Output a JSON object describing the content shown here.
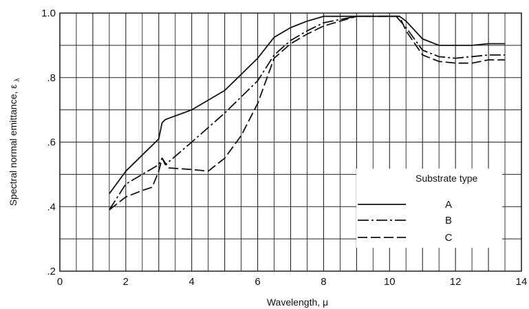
{
  "chart_data": {
    "type": "line",
    "title": "",
    "xlabel": "Wavelength, μ",
    "ylabel": "Spectral normal emittance, ε",
    "ylabel_subscript": "λ",
    "xlim": [
      0,
      14
    ],
    "ylim": [
      0.2,
      1.0
    ],
    "x_ticks": [
      0,
      2,
      4,
      6,
      8,
      10,
      12,
      14
    ],
    "x_tick_labels": [
      "0",
      "2",
      "4",
      "6",
      "8",
      "10",
      "12",
      "14"
    ],
    "y_ticks": [
      0.2,
      0.4,
      0.6,
      0.8,
      1.0
    ],
    "y_tick_labels": [
      ".2",
      ".4",
      ".6",
      ".8",
      "1.0"
    ],
    "grid": true,
    "legend": {
      "title": "Substrate type",
      "placement": "lower-right",
      "entries": [
        "A",
        "B",
        "C"
      ]
    },
    "series": [
      {
        "name": "A",
        "style": "solid",
        "x": [
          1.5,
          2.0,
          2.5,
          3.0,
          3.1,
          3.2,
          4.0,
          5.0,
          6.0,
          6.5,
          7.0,
          7.5,
          8.0,
          9.0,
          10.0,
          10.3,
          10.5,
          11.0,
          11.5,
          12.0,
          12.5,
          13.0,
          13.5
        ],
        "y": [
          0.44,
          0.51,
          0.56,
          0.61,
          0.66,
          0.67,
          0.7,
          0.76,
          0.86,
          0.925,
          0.955,
          0.975,
          0.99,
          0.99,
          0.99,
          0.99,
          0.975,
          0.92,
          0.9,
          0.9,
          0.9,
          0.905,
          0.905
        ]
      },
      {
        "name": "B",
        "style": "dash-dot",
        "x": [
          1.5,
          2.0,
          2.5,
          3.0,
          3.1,
          3.2,
          4.0,
          5.0,
          6.0,
          6.5,
          7.0,
          7.5,
          8.0,
          9.0,
          10.0,
          10.2,
          10.5,
          11.0,
          11.5,
          12.0,
          12.5,
          13.0,
          13.5
        ],
        "y": [
          0.39,
          0.47,
          0.5,
          0.53,
          0.55,
          0.53,
          0.6,
          0.69,
          0.79,
          0.87,
          0.915,
          0.945,
          0.97,
          0.99,
          0.99,
          0.99,
          0.955,
          0.885,
          0.865,
          0.86,
          0.865,
          0.87,
          0.87
        ]
      },
      {
        "name": "C",
        "style": "dashed",
        "x": [
          1.5,
          2.0,
          2.5,
          2.8,
          3.0,
          3.1,
          3.3,
          4.0,
          4.5,
          5.0,
          5.5,
          6.0,
          6.5,
          7.0,
          7.5,
          8.0,
          9.0,
          10.0,
          10.3,
          10.5,
          11.0,
          11.5,
          12.0,
          12.5,
          13.0,
          13.5
        ],
        "y": [
          0.39,
          0.43,
          0.45,
          0.46,
          0.51,
          0.55,
          0.52,
          0.515,
          0.51,
          0.55,
          0.62,
          0.72,
          0.86,
          0.905,
          0.935,
          0.96,
          0.99,
          0.99,
          0.99,
          0.945,
          0.87,
          0.85,
          0.845,
          0.845,
          0.855,
          0.855
        ]
      }
    ]
  }
}
